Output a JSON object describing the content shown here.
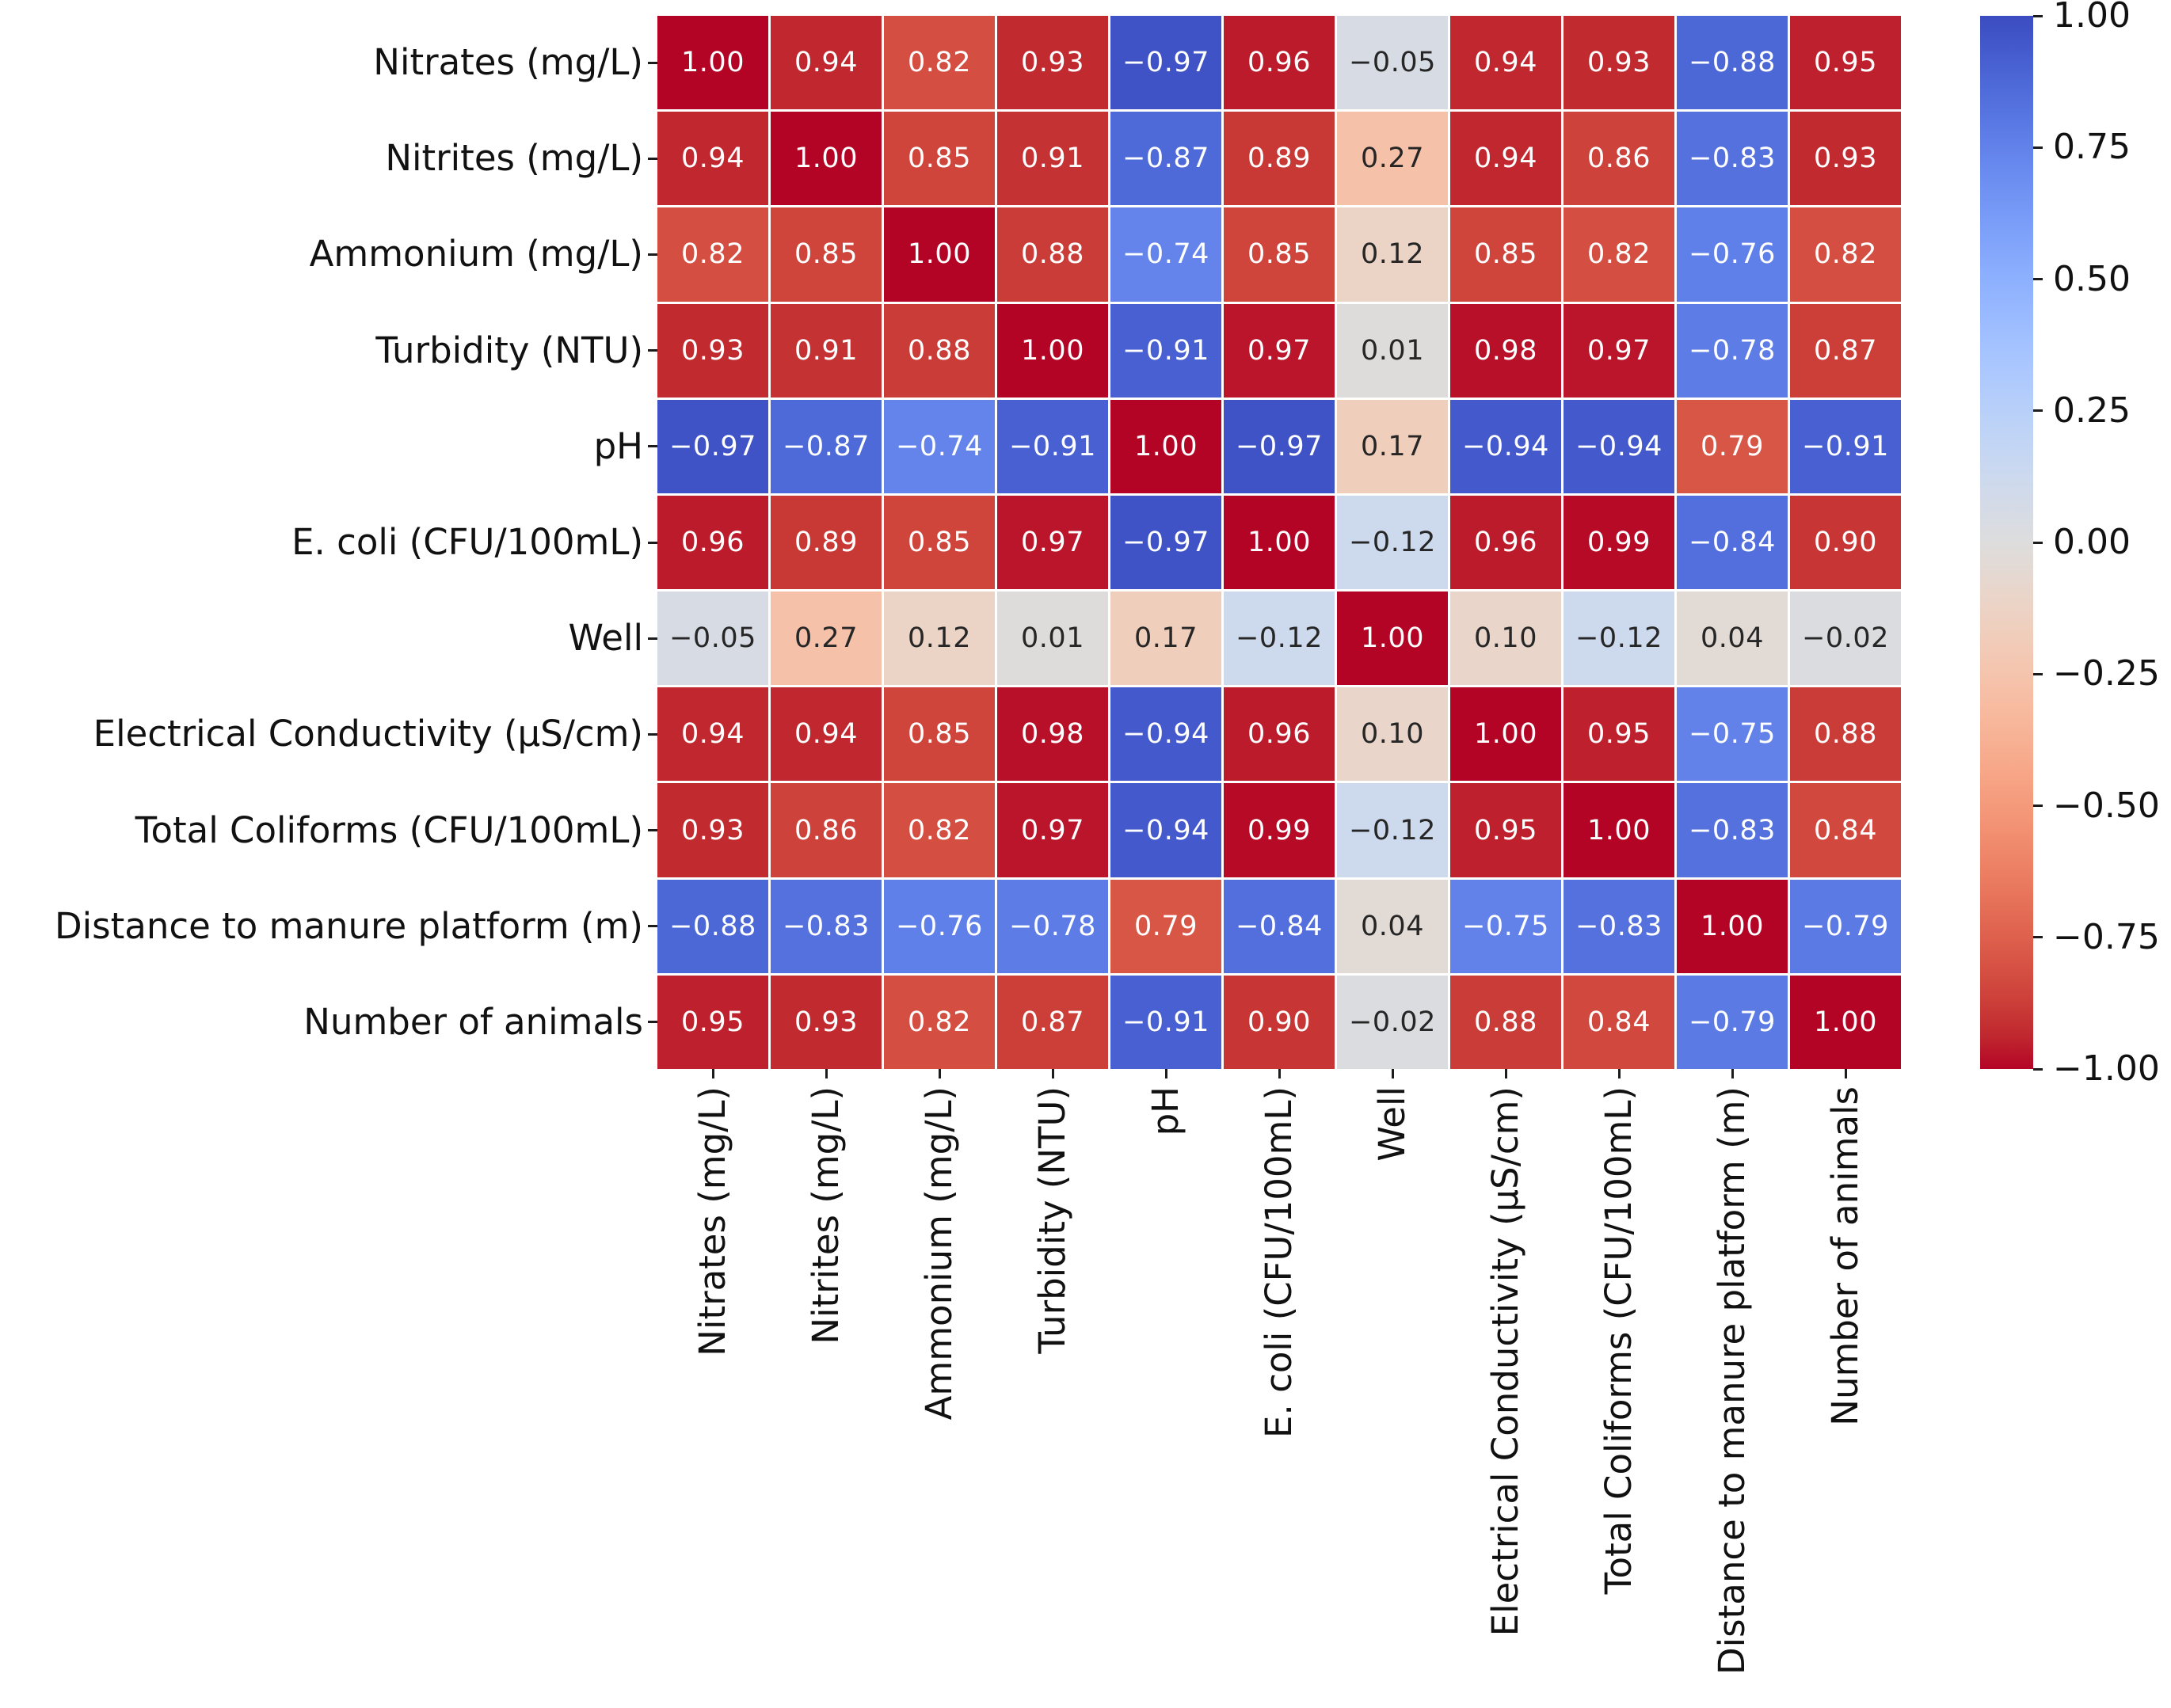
{
  "figure": {
    "background": "#ffffff",
    "description": "Correlation matrix heatmap of well water quality variables"
  },
  "chart_data": {
    "type": "heatmap",
    "title": "",
    "xlabel": "",
    "ylabel": "",
    "variables": [
      "Nitrates (mg/L)",
      "Nitrites (mg/L)",
      "Ammonium (mg/L)",
      "Turbidity (NTU)",
      "pH",
      "E. coli (CFU/100mL)",
      "Well",
      "Electrical Conductivity (µS/cm)",
      "Total Coliforms (CFU/100mL)",
      "Distance to manure platform (m)",
      "Number of animals"
    ],
    "matrix": [
      [
        1.0,
        0.94,
        0.82,
        0.93,
        -0.97,
        0.96,
        -0.05,
        0.94,
        0.93,
        -0.88,
        0.95
      ],
      [
        0.94,
        1.0,
        0.85,
        0.91,
        -0.87,
        0.89,
        0.27,
        0.94,
        0.86,
        -0.83,
        0.93
      ],
      [
        0.82,
        0.85,
        1.0,
        0.88,
        -0.74,
        0.85,
        0.12,
        0.85,
        0.82,
        -0.76,
        0.82
      ],
      [
        0.93,
        0.91,
        0.88,
        1.0,
        -0.91,
        0.97,
        0.01,
        0.98,
        0.97,
        -0.78,
        0.87
      ],
      [
        -0.97,
        -0.87,
        -0.74,
        -0.91,
        1.0,
        -0.97,
        0.17,
        -0.94,
        -0.94,
        0.79,
        -0.91
      ],
      [
        0.96,
        0.89,
        0.85,
        0.97,
        -0.97,
        1.0,
        -0.12,
        0.96,
        0.99,
        -0.84,
        0.9
      ],
      [
        -0.05,
        0.27,
        0.12,
        0.01,
        0.17,
        -0.12,
        1.0,
        0.1,
        -0.12,
        0.04,
        -0.02
      ],
      [
        0.94,
        0.94,
        0.85,
        0.98,
        -0.94,
        0.96,
        0.1,
        1.0,
        0.95,
        -0.75,
        0.88
      ],
      [
        0.93,
        0.86,
        0.82,
        0.97,
        -0.94,
        0.99,
        -0.12,
        0.95,
        1.0,
        -0.83,
        0.84
      ],
      [
        -0.88,
        -0.83,
        -0.76,
        -0.78,
        0.79,
        -0.84,
        0.04,
        -0.75,
        -0.83,
        1.0,
        -0.79
      ],
      [
        0.95,
        0.93,
        0.82,
        0.87,
        -0.91,
        0.9,
        -0.02,
        0.88,
        0.84,
        -0.79,
        1.0
      ]
    ],
    "vmin": -1,
    "vmax": 1,
    "annotation_decimals": 2,
    "grid_lines": "white",
    "colormap": "coolwarm",
    "colormap_key_colors": {
      "negative": "#3b4cc0",
      "zero": "#dddddd",
      "positive": "#b40426"
    },
    "annotation_text_colors": {
      "on_dark": "#ffffff",
      "on_light": "#262626"
    },
    "legend_position": "right",
    "colorbar": {
      "tick_values": [
        1.0,
        0.75,
        0.5,
        0.25,
        0.0,
        -0.25,
        -0.5,
        -0.75,
        -1.0
      ],
      "tick_labels": [
        "1.00",
        "0.75",
        "0.50",
        "0.25",
        "0.00",
        "−0.25",
        "−0.50",
        "−0.75",
        "−1.00"
      ]
    }
  }
}
